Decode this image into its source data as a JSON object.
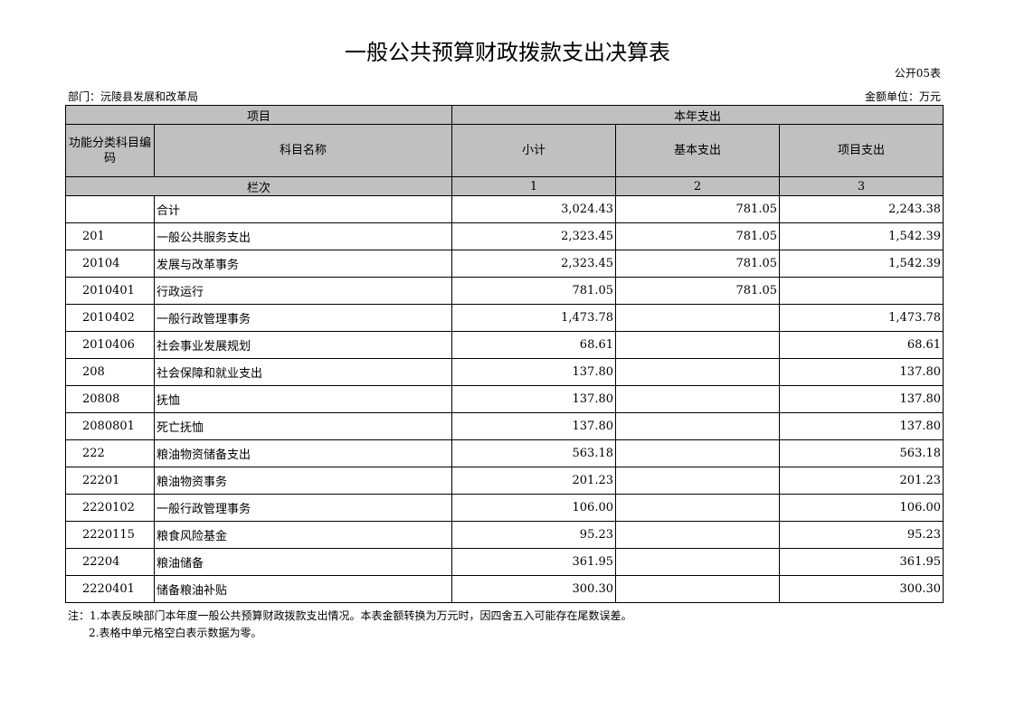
{
  "title": "一般公共预算财政拨款支出决算表",
  "form_no": "公开05表",
  "department": "部门：沅陵县发展和改革局",
  "unit": "金额单位：万元",
  "headers": {
    "item": "项目",
    "current_year": "本年支出",
    "code": "功能分类科目编码",
    "name": "科目名称",
    "subtotal": "小计",
    "basic": "基本支出",
    "project": "项目支出",
    "column_no": "栏次",
    "c1": "1",
    "c2": "2",
    "c3": "3"
  },
  "rows": [
    {
      "code": "",
      "name": "合计",
      "subtotal": "3,024.43",
      "basic": "781.05",
      "project": "2,243.38"
    },
    {
      "code": "201",
      "name": "一般公共服务支出",
      "subtotal": "2,323.45",
      "basic": "781.05",
      "project": "1,542.39"
    },
    {
      "code": "20104",
      "name": "发展与改革事务",
      "subtotal": "2,323.45",
      "basic": "781.05",
      "project": "1,542.39"
    },
    {
      "code": "2010401",
      "name": "行政运行",
      "subtotal": "781.05",
      "basic": "781.05",
      "project": ""
    },
    {
      "code": "2010402",
      "name": "一般行政管理事务",
      "subtotal": "1,473.78",
      "basic": "",
      "project": "1,473.78"
    },
    {
      "code": "2010406",
      "name": "社会事业发展规划",
      "subtotal": "68.61",
      "basic": "",
      "project": "68.61"
    },
    {
      "code": "208",
      "name": "社会保障和就业支出",
      "subtotal": "137.80",
      "basic": "",
      "project": "137.80"
    },
    {
      "code": "20808",
      "name": "抚恤",
      "subtotal": "137.80",
      "basic": "",
      "project": "137.80"
    },
    {
      "code": "2080801",
      "name": "死亡抚恤",
      "subtotal": "137.80",
      "basic": "",
      "project": "137.80"
    },
    {
      "code": "222",
      "name": "粮油物资储备支出",
      "subtotal": "563.18",
      "basic": "",
      "project": "563.18"
    },
    {
      "code": "22201",
      "name": "粮油物资事务",
      "subtotal": "201.23",
      "basic": "",
      "project": "201.23"
    },
    {
      "code": "2220102",
      "name": "一般行政管理事务",
      "subtotal": "106.00",
      "basic": "",
      "project": "106.00"
    },
    {
      "code": "2220115",
      "name": "粮食风险基金",
      "subtotal": "95.23",
      "basic": "",
      "project": "95.23"
    },
    {
      "code": "22204",
      "name": "粮油储备",
      "subtotal": "361.95",
      "basic": "",
      "project": "361.95"
    },
    {
      "code": "2220401",
      "name": "储备粮油补贴",
      "subtotal": "300.30",
      "basic": "",
      "project": "300.30"
    }
  ],
  "notes": [
    "注：1.本表反映部门本年度一般公共预算财政拨款支出情况。本表金额转换为万元时，因四舍五入可能存在尾数误差。",
    "2.表格中单元格空白表示数据为零。"
  ]
}
